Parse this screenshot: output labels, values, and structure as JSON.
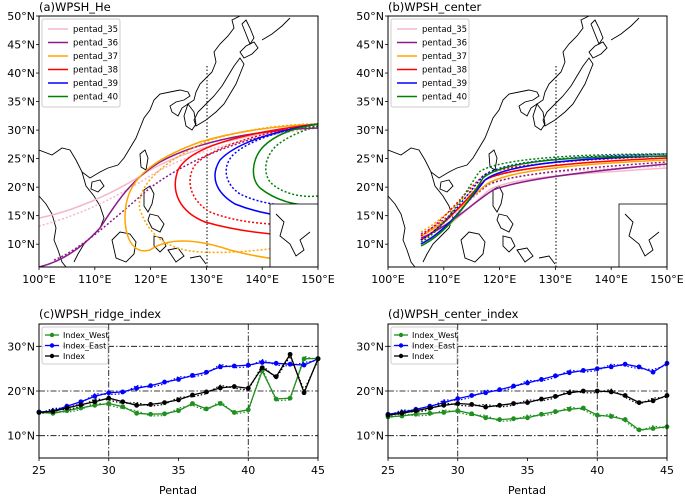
{
  "panels": {
    "a": {
      "title": "(a)WPSH_He"
    },
    "b": {
      "title": "(b)WPSH_center"
    },
    "c": {
      "title": "(c)WPSH_ridge_index"
    },
    "d": {
      "title": "(d)WPSH_center_index"
    }
  },
  "map_axes": {
    "lat_ticks": [
      "10°N",
      "15°N",
      "20°N",
      "25°N",
      "30°N",
      "35°N",
      "40°N",
      "45°N",
      "50°N"
    ],
    "lon_ticks": [
      "100°E",
      "110°E",
      "120°E",
      "130°E",
      "140°E",
      "150°E"
    ]
  },
  "map_legend": [
    {
      "label": "pentad_35",
      "color": "#f4b8c8"
    },
    {
      "label": "pentad_36",
      "color": "#8b1a8b"
    },
    {
      "label": "pentad_37",
      "color": "#ffa500"
    },
    {
      "label": "pentad_38",
      "color": "#ff0000"
    },
    {
      "label": "pentad_39",
      "color": "#0000ff"
    },
    {
      "label": "pentad_40",
      "color": "#008000"
    }
  ],
  "index_legend": [
    {
      "label": "Index_West",
      "color": "#1f8f1f"
    },
    {
      "label": "Index_East",
      "color": "#0000ff"
    },
    {
      "label": "Index",
      "color": "#000000"
    }
  ],
  "x_label": "Pentad",
  "chart_data": [
    {
      "type": "line",
      "panel": "c",
      "title": "(c)WPSH_ridge_index",
      "xlabel": "Pentad",
      "ylabel": "",
      "xlim": [
        25,
        45
      ],
      "ylim": [
        5,
        35
      ],
      "x_ticks": [
        "25",
        "30",
        "35",
        "40",
        "45"
      ],
      "y_ticks": [
        "10°N",
        "20°N",
        "30°N"
      ],
      "x": [
        25,
        26,
        27,
        28,
        29,
        30,
        31,
        32,
        33,
        34,
        35,
        36,
        37,
        38,
        39,
        40,
        41,
        42,
        43,
        44,
        45
      ],
      "series": [
        {
          "name": "Index_West",
          "color": "#1f8f1f",
          "values": [
            15.2,
            15.0,
            15.6,
            16.2,
            16.8,
            17.2,
            16.5,
            15.0,
            14.8,
            14.9,
            15.6,
            17.2,
            16.0,
            17.2,
            15.2,
            15.8,
            24.5,
            18.2,
            18.4,
            27.2,
            27.3
          ]
        },
        {
          "name": "Index_East",
          "color": "#0000ff",
          "values": [
            15.3,
            15.5,
            16.6,
            17.6,
            18.8,
            19.6,
            19.8,
            20.6,
            21.2,
            22.0,
            22.6,
            23.5,
            24.2,
            25.4,
            25.6,
            25.8,
            26.4,
            26.2,
            26.0,
            25.8,
            27.2
          ]
        },
        {
          "name": "Index",
          "color": "#000000",
          "values": [
            15.2,
            15.4,
            16.2,
            16.9,
            17.6,
            18.4,
            17.6,
            16.8,
            17.0,
            17.4,
            18.0,
            19.1,
            19.8,
            20.7,
            21.0,
            20.6,
            25.2,
            23.2,
            28.2,
            19.6,
            27.2
          ]
        }
      ]
    },
    {
      "type": "line",
      "panel": "d",
      "title": "(d)WPSH_center_index",
      "xlabel": "Pentad",
      "ylabel": "",
      "xlim": [
        25,
        45
      ],
      "ylim": [
        5,
        35
      ],
      "x_ticks": [
        "25",
        "30",
        "35",
        "40",
        "45"
      ],
      "y_ticks": [
        "10°N",
        "20°N",
        "30°N"
      ],
      "x": [
        25,
        26,
        27,
        28,
        29,
        30,
        31,
        32,
        33,
        34,
        35,
        36,
        37,
        38,
        39,
        40,
        41,
        42,
        43,
        44,
        45
      ],
      "series": [
        {
          "name": "Index_West",
          "color": "#1f8f1f",
          "values": [
            14.2,
            14.4,
            14.8,
            15.0,
            15.2,
            15.6,
            14.9,
            14.0,
            13.6,
            13.8,
            14.0,
            14.8,
            15.4,
            15.9,
            16.2,
            14.6,
            14.3,
            13.6,
            11.3,
            11.6,
            12.0
          ]
        },
        {
          "name": "Index_East",
          "color": "#0000ff",
          "values": [
            14.8,
            15.2,
            15.9,
            16.6,
            17.4,
            18.3,
            19.0,
            19.6,
            20.3,
            21.1,
            21.8,
            22.6,
            23.4,
            24.1,
            24.6,
            25.0,
            25.4,
            26.0,
            25.4,
            24.2,
            26.2
          ]
        },
        {
          "name": "Index",
          "color": "#000000",
          "values": [
            14.6,
            15.0,
            15.6,
            16.2,
            16.8,
            17.2,
            17.0,
            16.4,
            16.8,
            17.2,
            17.4,
            18.2,
            18.8,
            19.6,
            20.0,
            20.0,
            19.8,
            19.0,
            17.4,
            17.8,
            19.0
          ]
        }
      ]
    }
  ]
}
